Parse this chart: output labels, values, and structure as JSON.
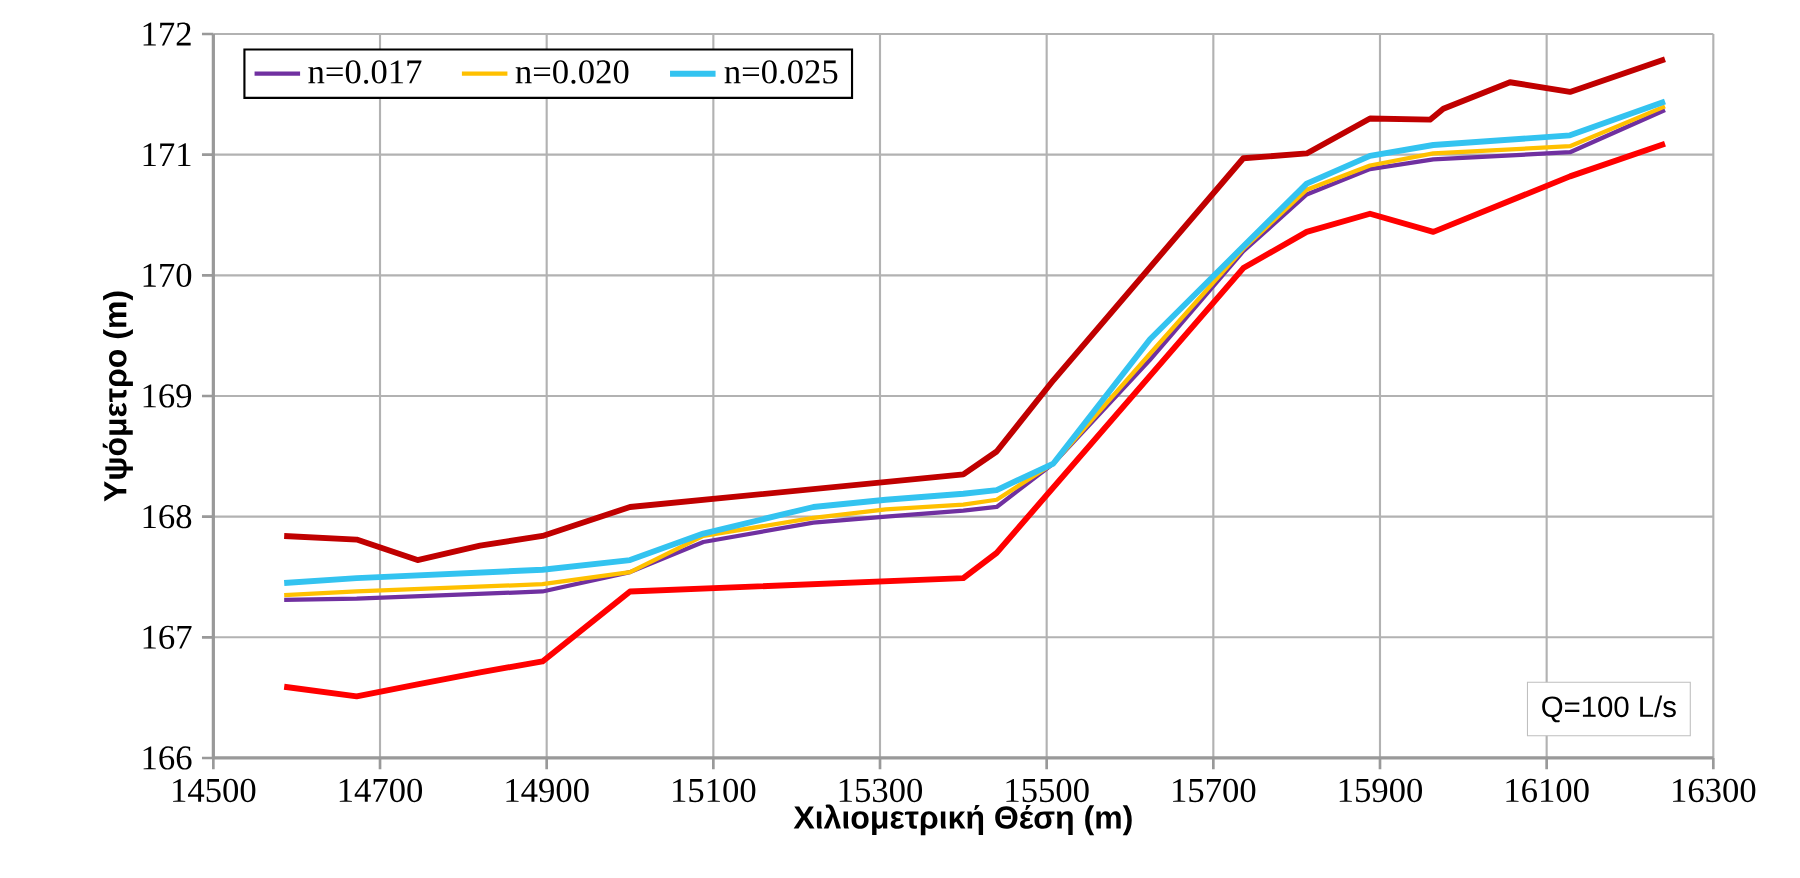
{
  "chart_data": {
    "type": "line",
    "xlabel": "Χιλιομετρική Θέση (m)",
    "ylabel": "Υψόμετρο (m)",
    "xlim": [
      14500,
      16300
    ],
    "xticks": [
      14500,
      14700,
      14900,
      15100,
      15300,
      15500,
      15700,
      15900,
      16100,
      16300
    ],
    "ylim": [
      166,
      172
    ],
    "yticks": [
      166,
      167,
      168,
      169,
      170,
      171,
      172
    ],
    "grid": true,
    "legend": "top left",
    "annotations": [
      "Q=100 L/s"
    ],
    "series": [
      {
        "color": "#c00000",
        "x": [
          14585,
          14672,
          14745,
          14820,
          14895,
          15000,
          15400,
          15440,
          15508,
          15736,
          15812,
          15888,
          15960,
          15976,
          16056,
          16128,
          16242
        ],
        "values": [
          167.84,
          167.81,
          167.64,
          167.76,
          167.84,
          168.08,
          168.35,
          168.54,
          169.13,
          170.97,
          171.01,
          171.3,
          171.29,
          171.38,
          171.6,
          171.52,
          171.79
        ]
      },
      {
        "color": "#ff0000",
        "x": [
          14585,
          14672,
          14745,
          14820,
          14895,
          15000,
          15400,
          15440,
          15736,
          15812,
          15888,
          15964,
          16128,
          16242
        ],
        "values": [
          166.59,
          166.51,
          166.61,
          166.71,
          166.8,
          167.38,
          167.49,
          167.7,
          170.06,
          170.36,
          170.51,
          170.36,
          170.82,
          171.09
        ]
      },
      {
        "name": "n=0.017",
        "color": "#7030a0",
        "x": [
          14585,
          14672,
          14895,
          15000,
          15088,
          15220,
          15307,
          15400,
          15440,
          15508,
          15624,
          15736,
          15812,
          15888,
          15964,
          16128,
          16242
        ],
        "values": [
          167.31,
          167.32,
          167.38,
          167.54,
          167.79,
          167.95,
          168.0,
          168.05,
          168.08,
          168.44,
          169.3,
          170.2,
          170.67,
          170.88,
          170.96,
          171.02,
          171.37
        ]
      },
      {
        "name": "n=0.020",
        "color": "#ffc000",
        "x": [
          14585,
          14672,
          14895,
          15000,
          15088,
          15220,
          15307,
          15400,
          15440,
          15508,
          15624,
          15736,
          15812,
          15888,
          15964,
          16128,
          16242
        ],
        "values": [
          167.35,
          167.38,
          167.44,
          167.54,
          167.84,
          167.99,
          168.06,
          168.1,
          168.14,
          168.44,
          169.35,
          170.22,
          170.71,
          170.91,
          171.01,
          171.07,
          171.4
        ]
      },
      {
        "name": "n=0.025",
        "color": "#33c3f0",
        "x": [
          14585,
          14672,
          14895,
          15000,
          15088,
          15220,
          15307,
          15400,
          15440,
          15508,
          15624,
          15736,
          15812,
          15888,
          15964,
          16128,
          16242
        ],
        "values": [
          167.45,
          167.49,
          167.56,
          167.64,
          167.86,
          168.08,
          168.14,
          168.19,
          168.22,
          168.44,
          169.47,
          170.24,
          170.76,
          170.99,
          171.08,
          171.16,
          171.44
        ]
      }
    ]
  }
}
